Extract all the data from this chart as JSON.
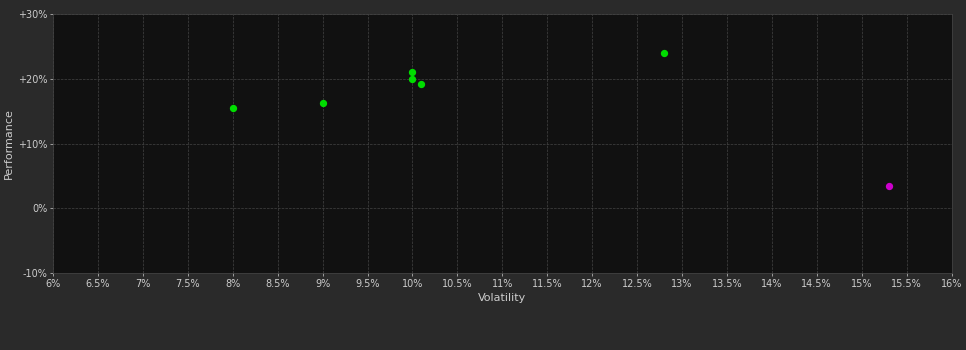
{
  "background_color": "#2a2a2a",
  "plot_bg_color": "#111111",
  "grid_color": "#444444",
  "xlabel": "Volatility",
  "ylabel": "Performance",
  "xlim": [
    0.06,
    0.16
  ],
  "ylim": [
    -0.1,
    0.3
  ],
  "xticks": [
    0.06,
    0.065,
    0.07,
    0.075,
    0.08,
    0.085,
    0.09,
    0.095,
    0.1,
    0.105,
    0.11,
    0.115,
    0.12,
    0.125,
    0.13,
    0.135,
    0.14,
    0.145,
    0.15,
    0.155,
    0.16
  ],
  "xtick_labels": [
    "6%",
    "6.5%",
    "7%",
    "7.5%",
    "8%",
    "8.5%",
    "9%",
    "9.5%",
    "10%",
    "10.5%",
    "11%",
    "11.5%",
    "12%",
    "12.5%",
    "13%",
    "13.5%",
    "14%",
    "14.5%",
    "15%",
    "15.5%",
    "16%"
  ],
  "yticks": [
    -0.1,
    0.0,
    0.1,
    0.2,
    0.3
  ],
  "ytick_labels": [
    "-10%",
    "0%",
    "+10%",
    "+20%",
    "+30%"
  ],
  "green_points": [
    [
      0.08,
      0.155
    ],
    [
      0.09,
      0.163
    ],
    [
      0.1,
      0.21
    ],
    [
      0.1,
      0.2
    ],
    [
      0.101,
      0.192
    ],
    [
      0.128,
      0.24
    ]
  ],
  "magenta_points": [
    [
      0.153,
      0.034
    ]
  ],
  "green_color": "#00dd00",
  "magenta_color": "#cc00cc",
  "text_color": "#cccccc",
  "tick_label_fontsize": 7,
  "axis_label_fontsize": 8,
  "marker_size": 18
}
